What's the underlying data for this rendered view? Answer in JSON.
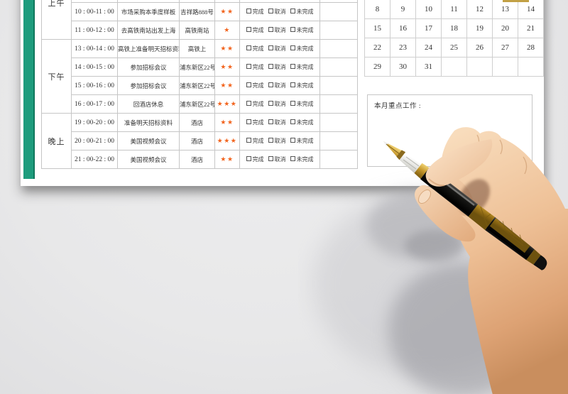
{
  "accent": {
    "bar_color": "#1e9c7d",
    "gold_highlight": "#c2a045",
    "border_color": "#c6c6c6"
  },
  "schedule": {
    "periods": [
      {
        "label": "上午",
        "rows": [
          0,
          1,
          2,
          3
        ]
      },
      {
        "label": "下午",
        "rows": [
          4,
          5,
          6,
          7
        ]
      },
      {
        "label": "晚上",
        "rows": [
          8,
          9,
          10
        ]
      }
    ],
    "rows": [
      {
        "time": "",
        "task": "",
        "location": "",
        "stars": 0
      },
      {
        "time": "",
        "task": "",
        "location": "",
        "stars": 0
      },
      {
        "time": "10 : 00-11 : 00",
        "task": "市场采购本季度样板",
        "location": "吉祥路888号",
        "stars": 2
      },
      {
        "time": "11 : 00-12 : 00",
        "task": "去高铁南站出发上海",
        "location": "高铁南站",
        "stars": 1
      },
      {
        "time": "13 : 00-14 : 00",
        "task": "高铁上准备明天招标资料",
        "location": "高铁上",
        "stars": 2
      },
      {
        "time": "14 : 00-15 : 00",
        "task": "参加招标会议",
        "location": "浦东新区22号",
        "stars": 2
      },
      {
        "time": "15 : 00-16 : 00",
        "task": "参加招标会议",
        "location": "浦东新区22号",
        "stars": 2
      },
      {
        "time": "16 : 00-17 : 00",
        "task": "回酒店休息",
        "location": "浦东新区22号",
        "stars": 3
      },
      {
        "time": "19 : 00-20 : 00",
        "task": "准备明天招标资料",
        "location": "酒店",
        "stars": 2
      },
      {
        "time": "20 : 00-21 : 00",
        "task": "美国视频会议",
        "location": "酒店",
        "stars": 3
      },
      {
        "time": "21 : 00-22 : 00",
        "task": "美国视频会议",
        "location": "酒店",
        "stars": 2
      }
    ],
    "status_options": [
      "完成",
      "取消",
      "未完成"
    ],
    "star_char": "★",
    "star_color": "#f2641e"
  },
  "calendar": {
    "weeks": [
      [
        "8",
        "9",
        "10",
        "11",
        "12",
        "13",
        "14"
      ],
      [
        "15",
        "16",
        "17",
        "18",
        "19",
        "20",
        "21"
      ],
      [
        "22",
        "23",
        "24",
        "25",
        "26",
        "27",
        "28"
      ],
      [
        "29",
        "30",
        "31",
        "",
        "",
        "",
        ""
      ]
    ]
  },
  "notes": {
    "title": "本月重点工作 :",
    "content": ""
  }
}
